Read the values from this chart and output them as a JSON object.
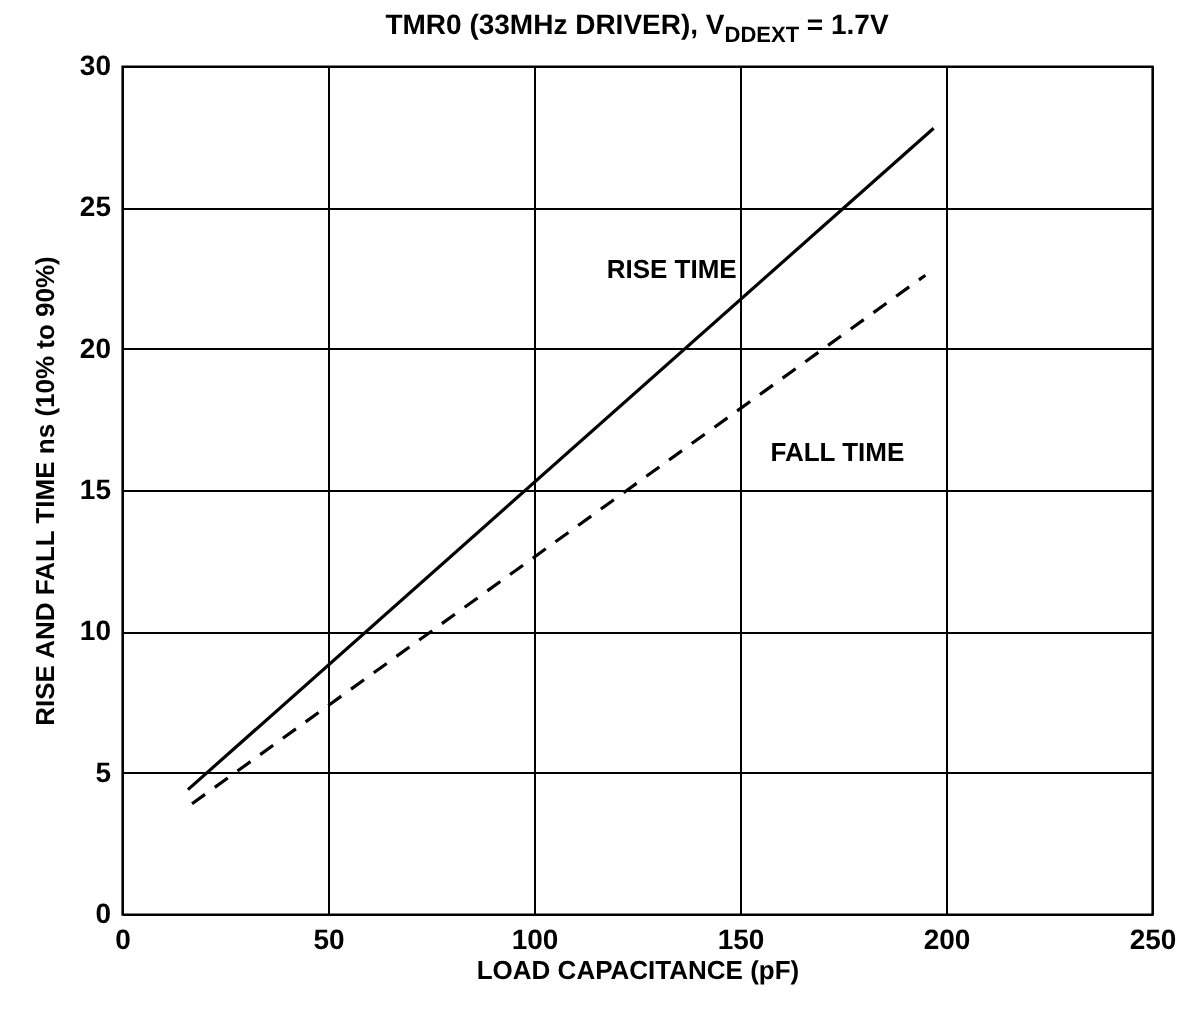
{
  "chart_data": {
    "type": "line",
    "title": "TMR0 (33MHz DRIVER), V$_{DDEXT}$ = 1.7V",
    "xlabel": "LOAD CAPACITANCE (pF)",
    "ylabel": "RISE AND FALL TIME ns (10% to 90%)",
    "xlim": [
      0,
      250
    ],
    "xticks": [
      0,
      50,
      100,
      150,
      200,
      250
    ],
    "ylim": [
      0,
      30
    ],
    "yticks": [
      0,
      5,
      10,
      15,
      20,
      25,
      30
    ],
    "grid": true,
    "series": [
      {
        "name": "RISE TIME",
        "color": "#000000",
        "line_style": "solid",
        "x": [
          16,
          197
        ],
        "values": [
          4.4,
          27.8
        ]
      },
      {
        "name": "FALL TIME",
        "color": "#000000",
        "line_style": "dashed",
        "x": [
          17,
          195
        ],
        "values": [
          3.9,
          22.6
        ]
      }
    ]
  }
}
